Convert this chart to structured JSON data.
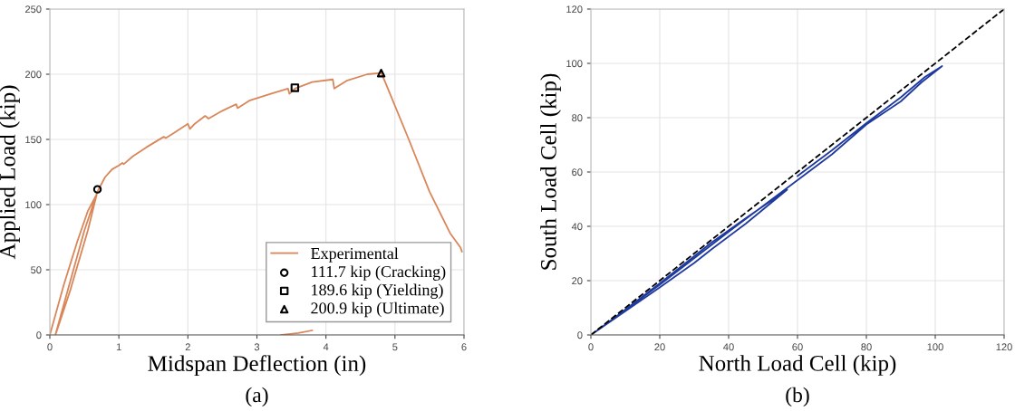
{
  "chart_data": [
    {
      "type": "line",
      "xlabel": "Midspan Deflection (in)",
      "ylabel": "Applied Load (kip)",
      "annotations": [
        "(a)"
      ],
      "xlim": [
        0,
        6
      ],
      "ylim": [
        0,
        250
      ],
      "xticks": [
        0,
        1,
        2,
        3,
        4,
        5,
        6
      ],
      "yticks": [
        0,
        50,
        100,
        150,
        200,
        250
      ],
      "grid": true,
      "legend": "bottom right",
      "series": [
        {
          "name": "Experimental",
          "color": "#d9875a",
          "marker": "none",
          "line_style": "solid",
          "x": [
            0,
            0.2,
            0.4,
            0.55,
            0.6,
            0.68,
            0.55,
            0.3,
            0.1,
            0.08,
            0.3,
            0.5,
            0.69,
            0.72,
            0.8,
            0.9,
            1.0,
            1.05,
            1.07,
            1.2,
            1.4,
            1.65,
            1.68,
            1.8,
            2.0,
            2.03,
            2.1,
            2.25,
            2.3,
            2.5,
            2.7,
            2.72,
            2.9,
            3.2,
            3.45,
            3.47,
            3.55,
            3.8,
            4.1,
            4.12,
            4.3,
            4.6,
            4.8,
            4.85,
            5.2,
            5.5,
            5.8,
            5.95,
            5.97,
            null,
            3.8,
            3.6,
            3.35
          ],
          "values": [
            0,
            38,
            72,
            95,
            100,
            108,
            80,
            35,
            3,
            0,
            42,
            80,
            110,
            113,
            121,
            127,
            130,
            132,
            131,
            137,
            144,
            152,
            151,
            155,
            162,
            158,
            162,
            168,
            166,
            172,
            177,
            174,
            180,
            185,
            189,
            185,
            189,
            194,
            196,
            189,
            195,
            200,
            201,
            195,
            150,
            110,
            78,
            67,
            64,
            null,
            3.5,
            1.5,
            0
          ]
        },
        {
          "name": "111.7 kip (Cracking)",
          "type": "scatter",
          "color": "#000000",
          "marker": "circle",
          "x": [
            0.69
          ],
          "values": [
            111.7
          ]
        },
        {
          "name": "189.6 kip (Yielding)",
          "type": "scatter",
          "color": "#000000",
          "marker": "square",
          "x": [
            3.55
          ],
          "values": [
            189.6
          ]
        },
        {
          "name": "200.9 kip (Ultimate)",
          "type": "scatter",
          "color": "#000000",
          "marker": "triangle",
          "x": [
            4.8
          ],
          "values": [
            200.9
          ]
        }
      ]
    },
    {
      "type": "line",
      "xlabel": "North Load Cell (kip)",
      "ylabel": "South Load Cell (kip)",
      "annotations": [
        "(b)"
      ],
      "xlim": [
        0,
        120
      ],
      "ylim": [
        0,
        120
      ],
      "xticks": [
        0,
        20,
        40,
        60,
        80,
        100,
        120
      ],
      "yticks": [
        0,
        20,
        40,
        60,
        80,
        100,
        120
      ],
      "grid": true,
      "series": [
        {
          "color": "#1f3a9e",
          "marker": "none",
          "line_style": "solid",
          "x": [
            0,
            20,
            30,
            35,
            45,
            57,
            45,
            35,
            20,
            5,
            0,
            20,
            40,
            60,
            70,
            80,
            90,
            96,
            102,
            97,
            90,
            80,
            70,
            60
          ],
          "values": [
            0,
            17.5,
            26.5,
            31.5,
            41,
            53.5,
            43,
            34,
            19,
            4.5,
            0,
            18.5,
            38,
            57,
            66.5,
            77.5,
            86,
            93,
            99,
            95,
            87.5,
            78,
            68,
            58.5
          ]
        },
        {
          "color": "#000000",
          "marker": "none",
          "line_style": "dashed",
          "x": [
            0,
            120
          ],
          "values": [
            0,
            120
          ]
        }
      ]
    }
  ]
}
